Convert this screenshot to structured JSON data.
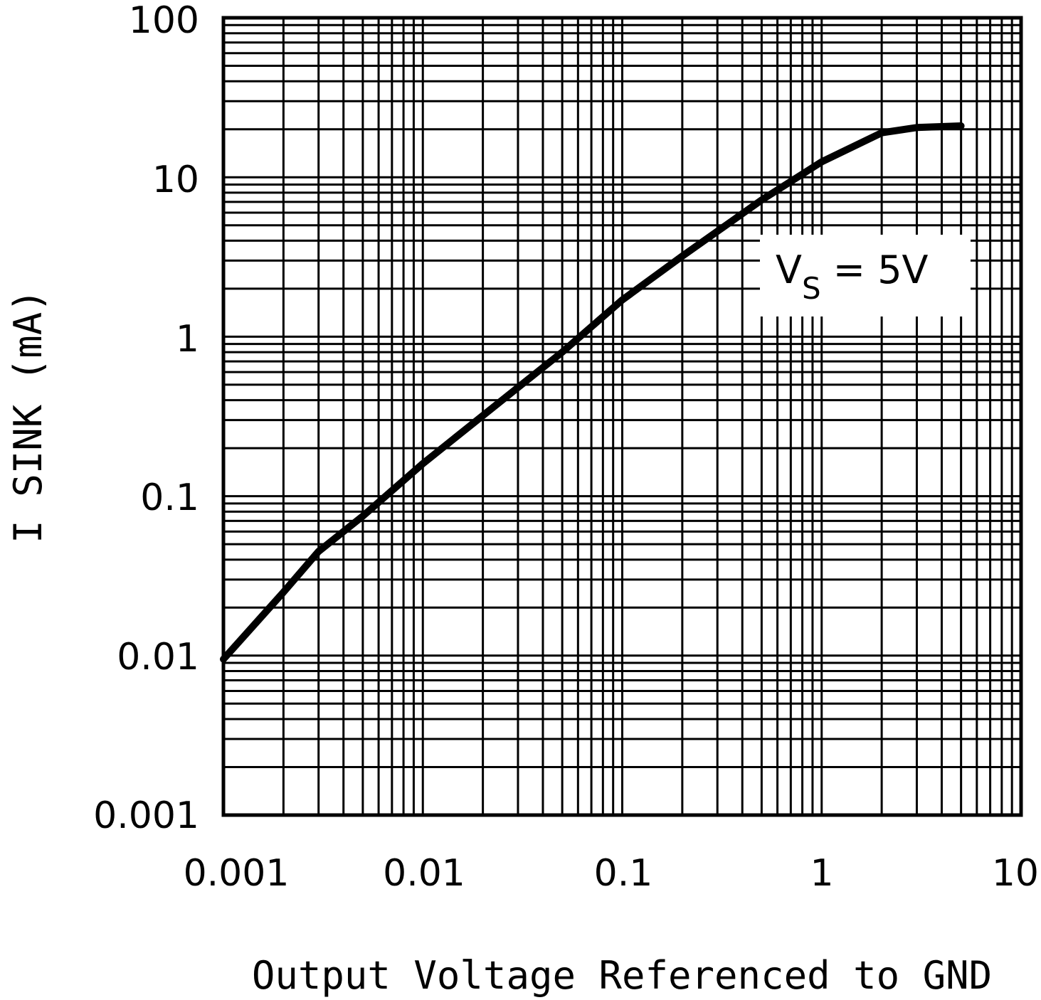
{
  "chart_data": {
    "type": "line",
    "title": "",
    "xlabel": "Output Voltage Referenced to GND",
    "ylabel": "I SINK (mA)",
    "xscale": "log",
    "yscale": "log",
    "xlim": [
      0.001,
      10
    ],
    "ylim": [
      0.001,
      100
    ],
    "grid": true,
    "x_ticks": [
      "0.001",
      "0.01",
      "0.1",
      "1",
      "10"
    ],
    "y_ticks": [
      "0.001",
      "0.01",
      "0.1",
      "1",
      "10",
      "100"
    ],
    "annotation": {
      "main": "V",
      "sub": "S",
      "rest": " = 5V"
    },
    "series": [
      {
        "color": "#000000",
        "points": [
          [
            0.001,
            0.0095
          ],
          [
            0.002,
            0.025
          ],
          [
            0.003,
            0.045
          ],
          [
            0.005,
            0.075
          ],
          [
            0.01,
            0.16
          ],
          [
            0.02,
            0.32
          ],
          [
            0.05,
            0.8
          ],
          [
            0.1,
            1.7
          ],
          [
            0.2,
            3.2
          ],
          [
            0.5,
            7.2
          ],
          [
            1.0,
            12.5
          ],
          [
            2.0,
            19
          ],
          [
            3.0,
            20.5
          ],
          [
            5.0,
            21
          ]
        ]
      }
    ]
  }
}
